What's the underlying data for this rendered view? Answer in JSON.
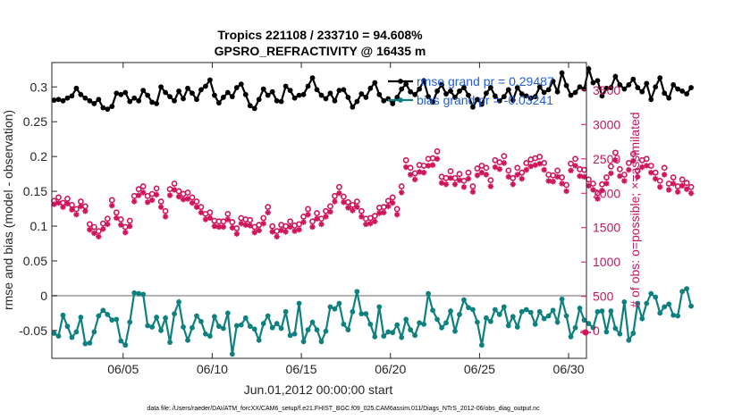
{
  "chart_data": {
    "type": "line",
    "title_line1": "Tropics 221108 / 233710 = 94.608%",
    "title_line2": "GPSRO_REFRACTIVITY @ 16435 m",
    "xlabel": "Jun.01,2012 00:00:00 start",
    "ylabel_left": "rmse and bias (model - observation)",
    "ylabel_right": "# of obs: o=possible; ×=assimilated",
    "xlim": [
      1,
      31
    ],
    "ylim_left": [
      -0.09,
      0.335
    ],
    "ylim_right": [
      -400,
      3900
    ],
    "x_ticks": [
      {
        "value": 5,
        "label": "06/05"
      },
      {
        "value": 10,
        "label": "06/10"
      },
      {
        "value": 15,
        "label": "06/15"
      },
      {
        "value": 20,
        "label": "06/20"
      },
      {
        "value": 25,
        "label": "06/25"
      },
      {
        "value": 30,
        "label": "06/30"
      }
    ],
    "y_left_ticks": [
      {
        "value": -0.05,
        "label": "-0.05"
      },
      {
        "value": 0,
        "label": "0"
      },
      {
        "value": 0.05,
        "label": "0.05"
      },
      {
        "value": 0.1,
        "label": "0.1"
      },
      {
        "value": 0.15,
        "label": "0.15"
      },
      {
        "value": 0.2,
        "label": "0.2"
      },
      {
        "value": 0.25,
        "label": "0.25"
      },
      {
        "value": 0.3,
        "label": "0.3"
      }
    ],
    "y_right_ticks": [
      {
        "value": 0,
        "label": "0"
      },
      {
        "value": 500,
        "label": "500"
      },
      {
        "value": 1000,
        "label": "1000"
      },
      {
        "value": 1500,
        "label": "1500"
      },
      {
        "value": 2000,
        "label": "2000"
      },
      {
        "value": 2500,
        "label": "2500"
      },
      {
        "value": 3000,
        "label": "3000"
      },
      {
        "value": 3500,
        "label": "3500"
      }
    ],
    "legend": [
      {
        "name": "rmse grand pr = 0.29487",
        "color": "#000000"
      },
      {
        "name": "bias grand pr = -0.03241",
        "color": "#0f8080"
      }
    ],
    "colors": {
      "rmse": "#000000",
      "bias": "#0f8080",
      "obs": "#d0155c",
      "zero_line": "#b0b0b0"
    },
    "n_points_per_day": 4,
    "rmse": [
      0.281,
      0.282,
      0.28,
      0.284,
      0.287,
      0.298,
      0.289,
      0.284,
      0.28,
      0.276,
      0.282,
      0.27,
      0.268,
      0.272,
      0.291,
      0.289,
      0.292,
      0.279,
      0.284,
      0.28,
      0.295,
      0.288,
      0.278,
      0.276,
      0.3,
      0.292,
      0.286,
      0.28,
      0.294,
      0.283,
      0.298,
      0.291,
      0.282,
      0.296,
      0.301,
      0.31,
      0.288,
      0.277,
      0.285,
      0.292,
      0.286,
      0.299,
      0.304,
      0.289,
      0.273,
      0.269,
      0.282,
      0.297,
      0.288,
      0.293,
      0.28,
      0.279,
      0.301,
      0.295,
      0.284,
      0.288,
      0.289,
      0.301,
      0.313,
      0.296,
      0.288,
      0.283,
      0.291,
      0.28,
      0.295,
      0.296,
      0.285,
      0.271,
      0.279,
      0.29,
      0.285,
      0.298,
      0.306,
      0.289,
      0.28,
      0.283,
      0.276,
      0.285,
      0.297,
      0.304,
      0.293,
      0.289,
      0.297,
      0.309,
      0.286,
      0.278,
      0.294,
      0.303,
      0.29,
      0.294,
      0.285,
      0.294,
      0.299,
      0.288,
      0.271,
      0.282,
      0.275,
      0.291,
      0.299,
      0.287,
      0.28,
      0.286,
      0.296,
      0.281,
      0.299,
      0.29,
      0.287,
      0.284,
      0.286,
      0.3,
      0.292,
      0.296,
      0.308,
      0.293,
      0.32,
      0.302,
      0.288,
      0.292,
      0.3,
      0.297,
      0.326,
      0.306,
      0.309,
      0.287,
      0.298,
      0.299,
      0.315,
      0.303,
      0.297,
      0.303,
      0.311,
      0.299,
      0.293,
      0.305,
      0.282,
      0.3,
      0.313,
      0.291,
      0.284,
      0.303,
      0.297,
      0.294,
      0.29,
      0.299
    ],
    "bias": [
      -0.054,
      -0.058,
      -0.028,
      -0.044,
      -0.06,
      -0.052,
      -0.031,
      -0.069,
      -0.068,
      -0.052,
      -0.029,
      -0.021,
      -0.027,
      -0.035,
      -0.034,
      -0.065,
      -0.071,
      -0.038,
      0.004,
      0.003,
      0.002,
      -0.043,
      -0.045,
      -0.031,
      -0.05,
      -0.032,
      -0.067,
      -0.026,
      -0.009,
      -0.045,
      -0.064,
      -0.046,
      -0.029,
      -0.037,
      -0.055,
      -0.058,
      -0.03,
      -0.044,
      -0.047,
      -0.025,
      -0.084,
      -0.043,
      -0.042,
      -0.032,
      -0.044,
      -0.048,
      -0.064,
      -0.04,
      -0.029,
      -0.046,
      -0.04,
      -0.047,
      -0.023,
      -0.057,
      -0.055,
      -0.011,
      -0.066,
      -0.049,
      -0.038,
      -0.049,
      -0.066,
      -0.051,
      -0.016,
      -0.019,
      -0.011,
      -0.041,
      -0.049,
      -0.023,
      0.006,
      -0.026,
      -0.026,
      -0.041,
      -0.059,
      -0.016,
      -0.058,
      -0.052,
      -0.053,
      -0.042,
      -0.06,
      -0.034,
      -0.049,
      -0.057,
      -0.039,
      -0.041,
      0.003,
      -0.021,
      -0.034,
      -0.046,
      -0.039,
      -0.022,
      -0.051,
      -0.027,
      -0.006,
      -0.017,
      -0.02,
      -0.038,
      -0.071,
      -0.032,
      -0.037,
      -0.02,
      -0.027,
      -0.016,
      -0.043,
      -0.03,
      -0.045,
      -0.023,
      -0.02,
      -0.024,
      -0.041,
      -0.023,
      -0.033,
      -0.029,
      -0.021,
      -0.038,
      -0.005,
      -0.029,
      -0.059,
      -0.046,
      -0.018,
      -0.035,
      -0.04,
      -0.046,
      -0.023,
      -0.022,
      -0.052,
      -0.022,
      -0.047,
      -0.055,
      -0.009,
      -0.064,
      -0.054,
      -0.011,
      -0.033,
      -0.011,
      0.003,
      -0.002,
      -0.025,
      -0.016,
      -0.012,
      -0.028,
      -0.029,
      0.006,
      0.01,
      -0.015
    ],
    "obs_possible": [
      1890,
      1940,
      1860,
      1920,
      1830,
      1770,
      1880,
      1810,
      1550,
      1510,
      1450,
      1560,
      1630,
      1900,
      1720,
      1620,
      1510,
      1600,
      1960,
      2060,
      2100,
      1960,
      1990,
      2070,
      1880,
      1740,
      2060,
      2140,
      2030,
      1990,
      2010,
      1940,
      1880,
      1800,
      1700,
      1720,
      1600,
      1590,
      1590,
      1700,
      1580,
      1490,
      1640,
      1620,
      1610,
      1510,
      1540,
      1640,
      1800,
      1520,
      1450,
      1540,
      1520,
      1590,
      1530,
      1550,
      1660,
      1770,
      1590,
      1710,
      1630,
      1740,
      1810,
      1960,
      2090,
      1950,
      1870,
      1830,
      1880,
      1740,
      1630,
      1640,
      1670,
      1790,
      1800,
      1890,
      1940,
      1770,
      2100,
      2480,
      2370,
      2290,
      2410,
      2400,
      2500,
      2510,
      2610,
      2240,
      2220,
      2320,
      2220,
      2280,
      2180,
      2300,
      2100,
      2360,
      2400,
      2370,
      2190,
      2480,
      2450,
      2540,
      2330,
      2220,
      2370,
      2300,
      2440,
      2490,
      2510,
      2530,
      2440,
      2270,
      2260,
      2330,
      2230,
      2120,
      2430,
      2500,
      2350,
      2340,
      2200,
      2140,
      2000,
      2130,
      2230,
      2390,
      2590,
      2350,
      2270,
      2440,
      2570,
      2330,
      2480,
      2500,
      2400,
      2300,
      2180,
      2370,
      2140,
      2230,
      2100,
      2200,
      2150,
      2090
    ],
    "obs_assimilated": [
      1840,
      1860,
      1800,
      1850,
      1760,
      1690,
      1810,
      1740,
      1470,
      1420,
      1370,
      1480,
      1550,
      1820,
      1640,
      1540,
      1430,
      1520,
      1880,
      1970,
      2010,
      1870,
      1900,
      1980,
      1800,
      1660,
      1970,
      2050,
      1950,
      1910,
      1920,
      1860,
      1800,
      1720,
      1620,
      1640,
      1520,
      1510,
      1510,
      1620,
      1500,
      1410,
      1560,
      1540,
      1530,
      1430,
      1460,
      1560,
      1720,
      1440,
      1370,
      1460,
      1440,
      1510,
      1450,
      1470,
      1580,
      1690,
      1510,
      1630,
      1550,
      1660,
      1730,
      1880,
      2000,
      1870,
      1790,
      1750,
      1800,
      1660,
      1550,
      1560,
      1590,
      1710,
      1720,
      1810,
      1860,
      1690,
      2010,
      2380,
      2270,
      2200,
      2310,
      2300,
      2400,
      2410,
      2500,
      2150,
      2130,
      2220,
      2130,
      2190,
      2090,
      2210,
      2020,
      2260,
      2300,
      2270,
      2100,
      2380,
      2350,
      2440,
      2240,
      2130,
      2270,
      2210,
      2340,
      2390,
      2410,
      2430,
      2340,
      2180,
      2170,
      2240,
      2140,
      2030,
      2330,
      2400,
      2250,
      2240,
      2110,
      2050,
      1920,
      2040,
      2140,
      2290,
      2480,
      2250,
      2180,
      2340,
      2470,
      2240,
      2380,
      2400,
      2300,
      2210,
      2090,
      2270,
      2050,
      2140,
      2020,
      2110,
      2060,
      2000
    ]
  },
  "footnote": "data file: /Users/raeder/DAI/ATM_forcXX/CAM6_setup/f.e21.FHIST_BGC.f09_025.CAM6assim.011/Diags_NTrS_2012-06/obs_diag_output.nc"
}
